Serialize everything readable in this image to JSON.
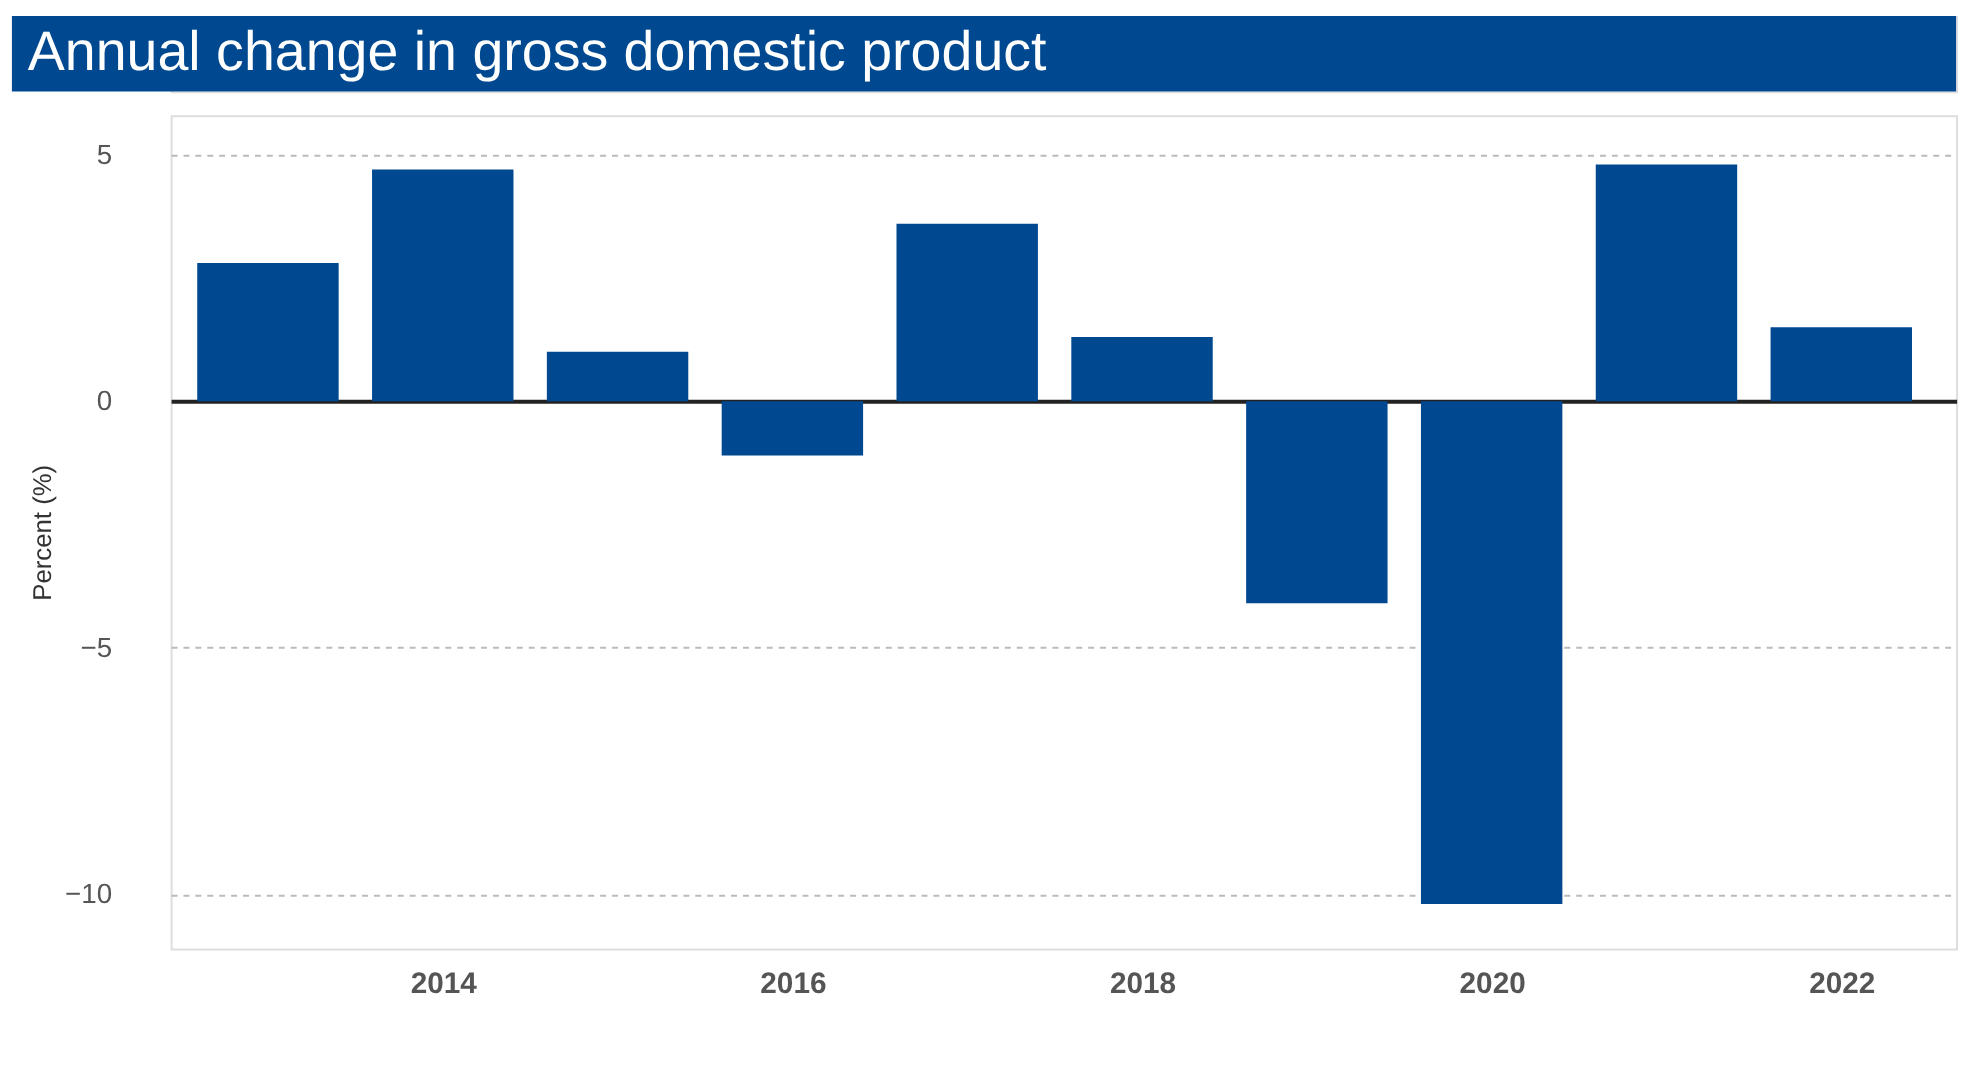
{
  "chart_data": {
    "type": "bar",
    "title": "Annual change in gross domestic product",
    "ylabel": "Percent (%)",
    "x": [
      2013,
      2014,
      2015,
      2016,
      2017,
      2018,
      2019,
      2020,
      2021,
      2022
    ],
    "values": [
      2.8,
      4.7,
      1.0,
      -1.1,
      3.6,
      1.3,
      -4.1,
      -10.2,
      4.8,
      1.5
    ],
    "color": "#004990",
    "xlim": [
      2012.5,
      2022.6
    ],
    "xticks": [
      2014,
      2016,
      2018,
      2020,
      2022
    ],
    "ylim": [
      -11.1,
      5.8
    ],
    "yticks": [
      -10,
      -5,
      0,
      5
    ],
    "grid": "y"
  }
}
